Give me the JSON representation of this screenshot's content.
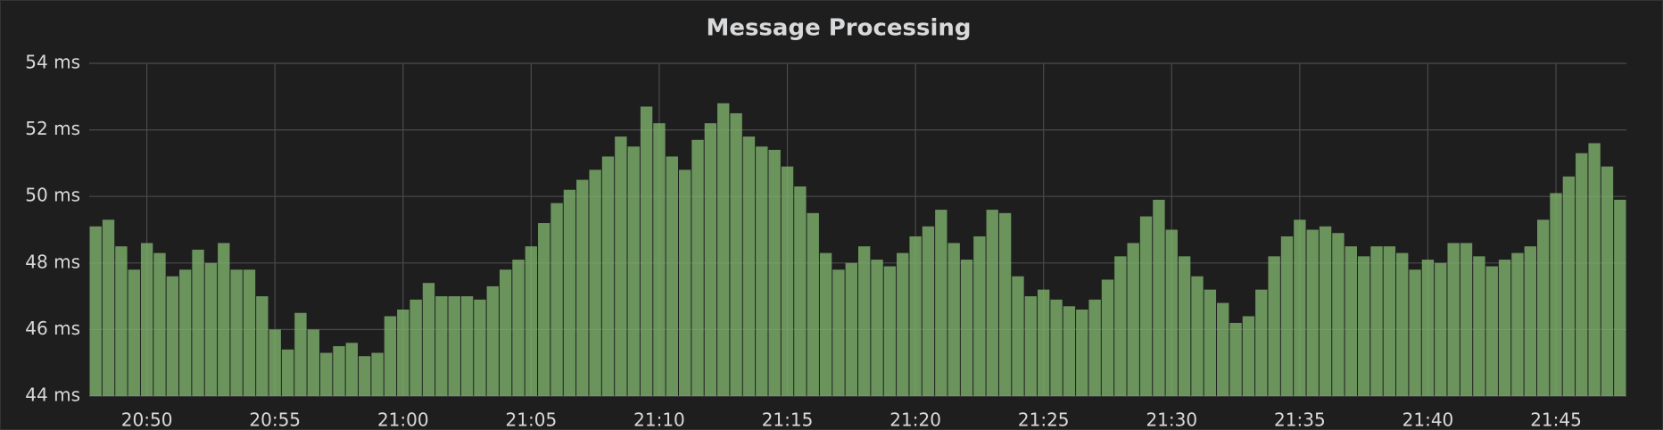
{
  "chart_data": {
    "type": "bar",
    "title": "Message Processing",
    "categories": [
      null,
      null,
      null,
      null,
      "20:50",
      null,
      null,
      null,
      null,
      null,
      null,
      null,
      null,
      null,
      "20:55",
      null,
      null,
      null,
      null,
      null,
      null,
      null,
      null,
      null,
      "21:00",
      null,
      null,
      null,
      null,
      null,
      null,
      null,
      null,
      null,
      "21:05",
      null,
      null,
      null,
      null,
      null,
      null,
      null,
      null,
      null,
      "21:10",
      null,
      null,
      null,
      null,
      null,
      null,
      null,
      null,
      null,
      "21:15",
      null,
      null,
      null,
      null,
      null,
      null,
      null,
      null,
      null,
      "21:20",
      null,
      null,
      null,
      null,
      null,
      null,
      null,
      null,
      null,
      "21:25",
      null,
      null,
      null,
      null,
      null,
      null,
      null,
      null,
      null,
      "21:30",
      null,
      null,
      null,
      null,
      null,
      null,
      null,
      null,
      null,
      "21:35",
      null,
      null,
      null,
      null,
      null,
      null,
      null,
      null,
      null,
      "21:40",
      null,
      null,
      null,
      null,
      null,
      null,
      null,
      null,
      null,
      "21:45",
      null,
      null,
      null,
      null,
      null
    ],
    "values": [
      49.1,
      49.3,
      48.5,
      47.8,
      48.6,
      48.3,
      47.6,
      47.8,
      48.4,
      48.0,
      48.6,
      47.8,
      47.8,
      47.0,
      46.0,
      45.4,
      46.5,
      46.0,
      45.3,
      45.5,
      45.6,
      45.2,
      45.3,
      46.4,
      46.6,
      46.9,
      47.4,
      47.0,
      47.0,
      47.0,
      46.9,
      47.3,
      47.8,
      48.1,
      48.5,
      49.2,
      49.8,
      50.2,
      50.5,
      50.8,
      51.2,
      51.8,
      51.5,
      52.7,
      52.2,
      51.2,
      50.8,
      51.7,
      52.2,
      52.8,
      52.5,
      51.8,
      51.5,
      51.4,
      50.9,
      50.3,
      49.5,
      48.3,
      47.8,
      48.0,
      48.5,
      48.1,
      47.9,
      48.3,
      48.8,
      49.1,
      49.6,
      48.6,
      48.1,
      48.8,
      49.6,
      49.5,
      47.6,
      47.0,
      47.2,
      46.9,
      46.7,
      46.6,
      46.9,
      47.5,
      48.2,
      48.6,
      49.4,
      49.9,
      49.0,
      48.2,
      47.6,
      47.2,
      46.8,
      46.2,
      46.4,
      47.2,
      48.2,
      48.8,
      49.3,
      49.0,
      49.1,
      48.9,
      48.5,
      48.2,
      48.5,
      48.5,
      48.3,
      47.8,
      48.1,
      48.0,
      48.6,
      48.6,
      48.2,
      47.9,
      48.1,
      48.3,
      48.5,
      49.3,
      50.1,
      50.6,
      51.3,
      51.6,
      50.9,
      49.9
    ],
    "color": "#7eb26d",
    "ylim": [
      44,
      54
    ],
    "yticks": [
      {
        "value": 44,
        "label": "44 ms"
      },
      {
        "value": 46,
        "label": "46 ms"
      },
      {
        "value": 48,
        "label": "48 ms"
      },
      {
        "value": 50,
        "label": "50 ms"
      },
      {
        "value": 52,
        "label": "52 ms"
      },
      {
        "value": 54,
        "label": "54 ms"
      }
    ],
    "grid": true
  }
}
